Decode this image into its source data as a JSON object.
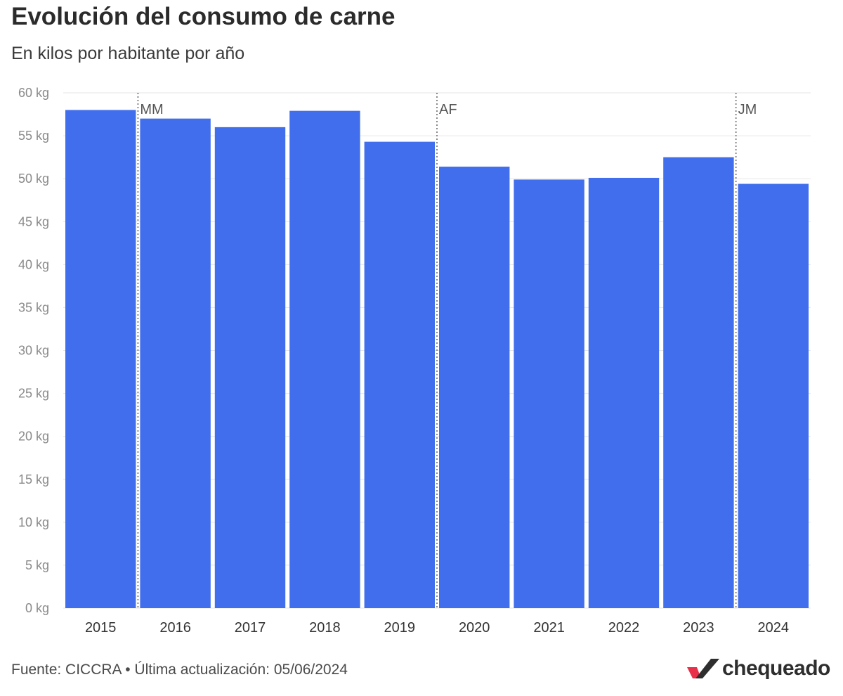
{
  "header": {
    "title": "Evolución del consumo de carne",
    "subtitle": "En kilos por habitante por año"
  },
  "footer": {
    "source": "Fuente: CICCRA • Última actualización: 05/06/2024",
    "brand": "chequeado"
  },
  "colors": {
    "bar": "#416eec",
    "grid": "#e6e6e6",
    "marker_line": "#888888",
    "logo_red": "#e8304a",
    "logo_dark": "#2e2e2e"
  },
  "chart_data": {
    "type": "bar",
    "categories": [
      "2015",
      "2016",
      "2017",
      "2018",
      "2019",
      "2020",
      "2021",
      "2022",
      "2023",
      "2024"
    ],
    "values": [
      58.0,
      57.0,
      56.0,
      57.9,
      54.3,
      51.4,
      49.9,
      50.1,
      52.5,
      49.4
    ],
    "ylim": [
      0,
      60
    ],
    "yticks": [
      0,
      5,
      10,
      15,
      20,
      25,
      30,
      35,
      40,
      45,
      50,
      55,
      60
    ],
    "ytick_suffix": " kg",
    "grid": true,
    "annotations": [
      {
        "label": "MM",
        "at_category": "2016"
      },
      {
        "label": "AF",
        "at_category": "2020"
      },
      {
        "label": "JM",
        "at_category": "2024"
      }
    ]
  }
}
